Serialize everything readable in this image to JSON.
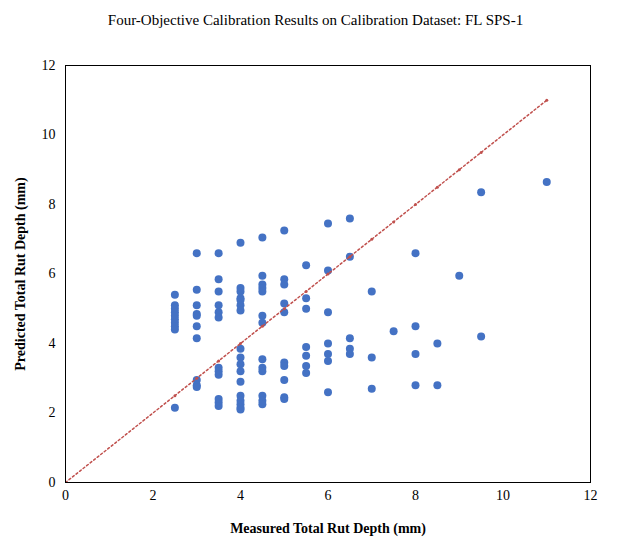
{
  "chart_data": {
    "type": "scatter",
    "title": "Four-Objective Calibration Results on Calibration Dataset: FL SPS-1",
    "x_label": "Measured Total Rut Depth (mm)",
    "y_label": "Predicted Total Rut Depth (mm)",
    "xlim": [
      0,
      12
    ],
    "ylim": [
      0,
      12
    ],
    "xticks": [
      0,
      2,
      4,
      6,
      8,
      10,
      12
    ],
    "yticks": [
      0,
      2,
      4,
      6,
      8,
      10,
      12
    ],
    "grid": false,
    "series": [
      {
        "type": "scatter",
        "color": "#4472c4",
        "marker": "circle",
        "x": [
          2.5,
          2.5,
          2.5,
          2.5,
          2.5,
          2.5,
          2.5,
          2.5,
          2.5,
          2.5,
          3,
          3,
          3,
          3,
          3,
          3,
          3,
          3,
          3,
          3,
          3.5,
          3.5,
          3.5,
          3.5,
          3.5,
          3.5,
          3.5,
          3.5,
          3.5,
          3.5,
          3.5,
          3.5,
          4,
          4,
          4,
          4,
          4,
          4,
          4,
          4,
          4,
          4,
          4,
          4,
          4,
          4,
          4,
          4,
          4,
          4.5,
          4.5,
          4.5,
          4.5,
          4.5,
          4.5,
          4.5,
          4.5,
          4.5,
          4.5,
          4.5,
          4.5,
          4.5,
          5,
          5,
          5,
          5,
          5,
          5,
          5,
          5,
          5,
          5,
          5.5,
          5.5,
          5.5,
          5.5,
          5.5,
          5.5,
          5.5,
          6,
          6,
          6,
          6,
          6,
          6,
          6,
          6.5,
          6.5,
          6.5,
          6.5,
          6.5,
          7,
          7,
          7,
          7.5,
          8,
          8,
          8,
          8,
          8.5,
          8.5,
          9,
          9.5,
          9.5,
          11
        ],
        "values": [
          5.4,
          5.1,
          5.0,
          4.9,
          4.8,
          4.7,
          4.6,
          4.5,
          4.4,
          2.15,
          6.6,
          5.55,
          5.1,
          4.85,
          4.8,
          4.5,
          4.15,
          2.95,
          2.8,
          2.75,
          6.6,
          5.85,
          5.5,
          5.1,
          4.9,
          4.75,
          3.3,
          3.2,
          3.1,
          2.4,
          2.3,
          2.2,
          6.9,
          5.6,
          5.5,
          5.3,
          5.25,
          5.1,
          4.95,
          3.85,
          3.6,
          3.4,
          3.2,
          2.9,
          2.5,
          2.35,
          2.25,
          2.15,
          2.1,
          7.05,
          5.95,
          5.7,
          5.6,
          5.5,
          4.8,
          4.6,
          3.55,
          3.3,
          3.2,
          2.5,
          2.35,
          2.25,
          7.25,
          5.85,
          5.7,
          5.15,
          4.9,
          3.45,
          3.35,
          2.95,
          2.45,
          2.4,
          6.25,
          5.3,
          5.0,
          3.9,
          3.65,
          3.35,
          3.15,
          7.45,
          6.1,
          4.9,
          4.0,
          3.7,
          3.5,
          2.6,
          7.6,
          6.5,
          4.15,
          3.85,
          3.7,
          5.5,
          3.6,
          2.7,
          4.35,
          6.6,
          4.5,
          3.7,
          2.8,
          4.0,
          2.8,
          5.95,
          8.35,
          4.2,
          8.65
        ]
      },
      {
        "type": "line",
        "color": "#c0504d",
        "line_style": "dotted",
        "marker": "circle",
        "x": [
          0,
          2.5,
          3,
          3.5,
          4,
          4.5,
          5,
          5.5,
          6,
          6.5,
          7,
          7.5,
          8,
          8.5,
          9,
          9.5,
          11
        ],
        "values": [
          0,
          2.5,
          3,
          3.5,
          4,
          4.5,
          5,
          5.5,
          6,
          6.5,
          7,
          7.5,
          8,
          8.5,
          9,
          9.5,
          11
        ]
      }
    ]
  }
}
